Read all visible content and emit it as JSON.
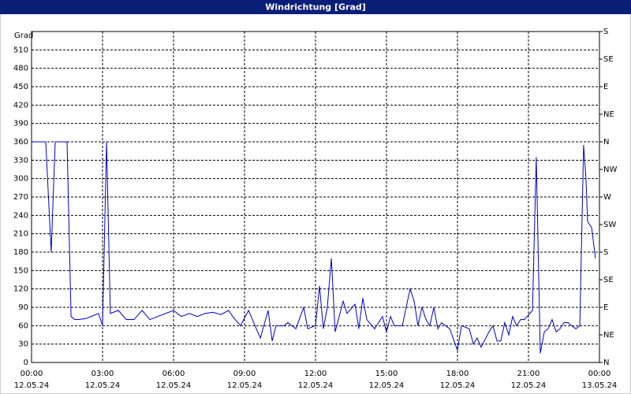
{
  "chart_data": {
    "type": "line",
    "title": "Windrichtung [Grad]",
    "y_label": "Grad",
    "x": [
      0,
      0.6,
      0.83,
      1.0,
      1.5,
      1.67,
      1.83,
      2.0,
      2.33,
      2.83,
      3.0,
      3.17,
      3.33,
      3.67,
      4.0,
      4.33,
      4.67,
      5.0,
      5.33,
      5.67,
      6.0,
      6.33,
      6.67,
      7.0,
      7.33,
      7.67,
      8.0,
      8.33,
      8.5,
      8.83,
      9.17,
      9.5,
      9.67,
      10.0,
      10.17,
      10.33,
      10.67,
      10.83,
      11.17,
      11.5,
      11.67,
      12.0,
      12.17,
      12.33,
      12.5,
      12.67,
      12.83,
      13.17,
      13.33,
      13.67,
      13.83,
      14.0,
      14.17,
      14.5,
      14.83,
      15.0,
      15.17,
      15.33,
      15.67,
      15.83,
      16.0,
      16.17,
      16.33,
      16.5,
      16.67,
      16.83,
      17.0,
      17.17,
      17.33,
      17.67,
      18.0,
      18.17,
      18.5,
      18.67,
      18.83,
      19.0,
      19.33,
      19.5,
      19.67,
      19.83,
      20.0,
      20.17,
      20.33,
      20.5,
      20.67,
      20.83,
      21.17,
      21.33,
      21.5,
      21.67,
      21.83,
      22.0,
      22.17,
      22.33,
      22.5,
      22.67,
      22.83,
      23.0,
      23.17,
      23.33,
      23.43,
      23.5,
      23.67,
      23.83
    ],
    "series": [
      {
        "name": "Windrichtung",
        "color": "#0000c8",
        "values": [
          360,
          360,
          180,
          360,
          360,
          75,
          70,
          70,
          72,
          80,
          60,
          360,
          80,
          85,
          70,
          70,
          85,
          70,
          75,
          80,
          85,
          75,
          80,
          75,
          80,
          82,
          78,
          85,
          75,
          60,
          85,
          55,
          40,
          85,
          35,
          60,
          60,
          65,
          55,
          90,
          55,
          60,
          125,
          55,
          90,
          170,
          50,
          100,
          80,
          95,
          55,
          105,
          70,
          55,
          75,
          50,
          75,
          60,
          60,
          90,
          120,
          100,
          60,
          90,
          70,
          60,
          90,
          55,
          65,
          55,
          20,
          60,
          55,
          30,
          40,
          25,
          50,
          60,
          35,
          35,
          65,
          45,
          75,
          60,
          70,
          70,
          85,
          335,
          15,
          50,
          55,
          70,
          50,
          55,
          65,
          65,
          60,
          55,
          60,
          355,
          300,
          230,
          220,
          170
        ]
      }
    ],
    "xlim": [
      0,
      24
    ],
    "xticks": [
      {
        "value": 0,
        "label": [
          "00:00",
          "12.05.24"
        ]
      },
      {
        "value": 3,
        "label": [
          "03:00",
          "12.05.24"
        ]
      },
      {
        "value": 6,
        "label": [
          "06:00",
          "12.05.24"
        ]
      },
      {
        "value": 9,
        "label": [
          "09:00",
          "12.05.24"
        ]
      },
      {
        "value": 12,
        "label": [
          "12:00",
          "12.05.24"
        ]
      },
      {
        "value": 15,
        "label": [
          "15:00",
          "12.05.24"
        ]
      },
      {
        "value": 18,
        "label": [
          "18:00",
          "12.05.24"
        ]
      },
      {
        "value": 21,
        "label": [
          "21:00",
          "12.05.24"
        ]
      },
      {
        "value": 24,
        "label": [
          "00:00",
          "13.05.24"
        ]
      }
    ],
    "ylim": [
      0,
      540
    ],
    "yticks": [
      0,
      30,
      60,
      90,
      120,
      150,
      180,
      210,
      240,
      270,
      300,
      330,
      360,
      390,
      420,
      450,
      480,
      510
    ],
    "y2lim": [
      0,
      540
    ],
    "y2ticks": [
      {
        "value": 0,
        "label": "N"
      },
      {
        "value": 45,
        "label": "NE"
      },
      {
        "value": 90,
        "label": "E"
      },
      {
        "value": 135,
        "label": "SE"
      },
      {
        "value": 180,
        "label": "S"
      },
      {
        "value": 225,
        "label": "SW"
      },
      {
        "value": 270,
        "label": "W"
      },
      {
        "value": 315,
        "label": "NW"
      },
      {
        "value": 360,
        "label": "N"
      },
      {
        "value": 405,
        "label": "NE"
      },
      {
        "value": 450,
        "label": "E"
      },
      {
        "value": 495,
        "label": "SE"
      },
      {
        "value": 540,
        "label": "S"
      }
    ],
    "grid": true
  }
}
